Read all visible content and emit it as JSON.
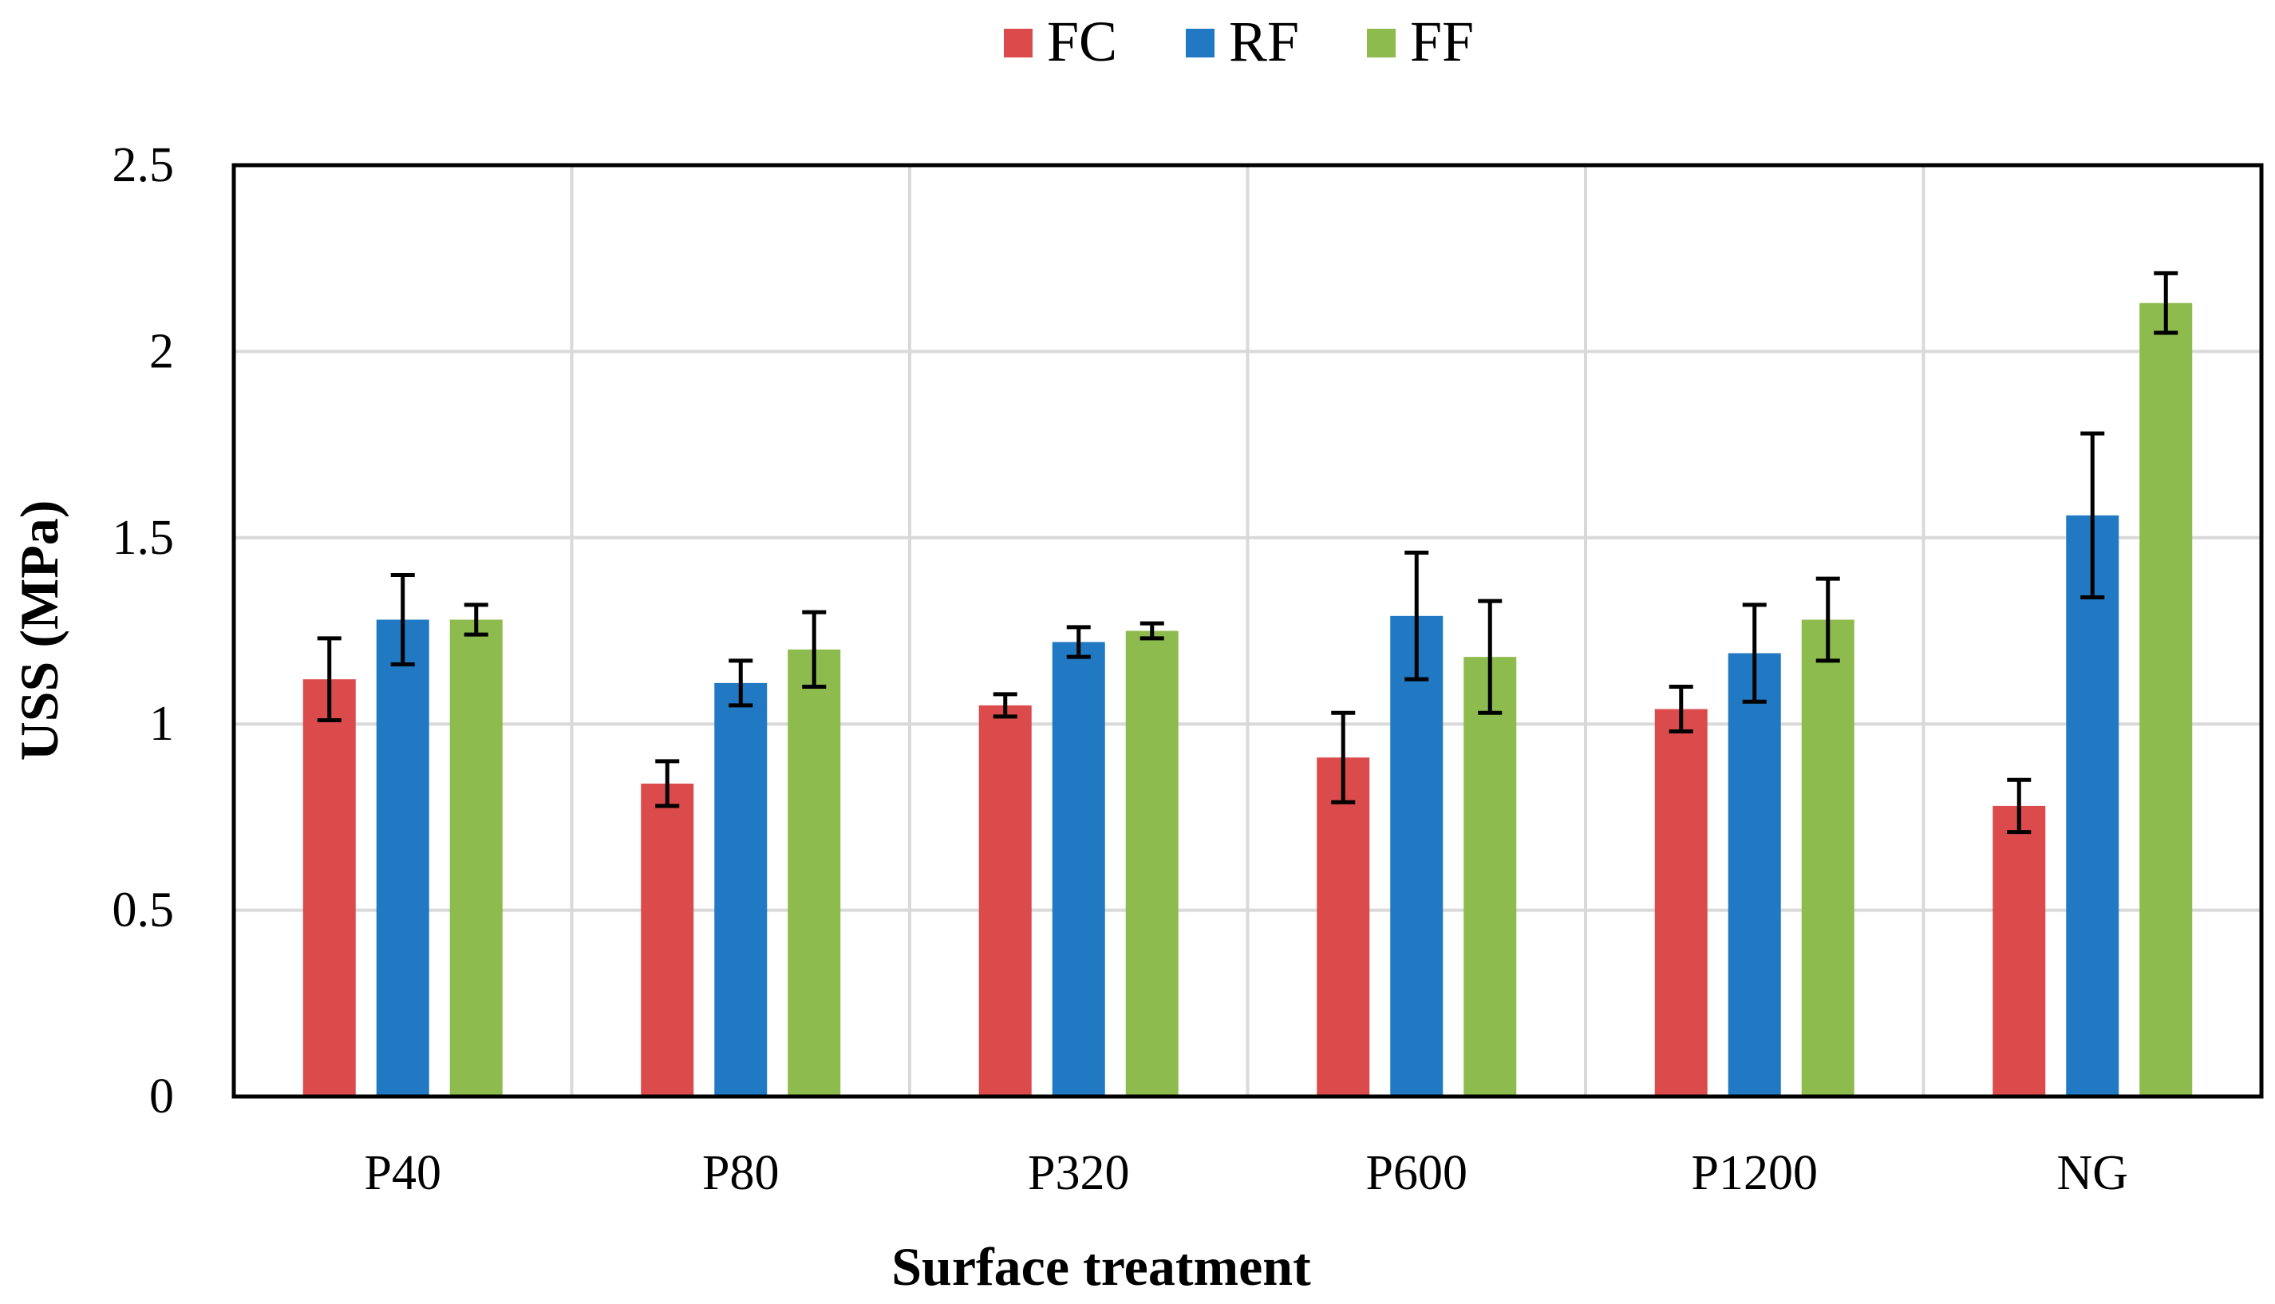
{
  "chart_data": {
    "type": "bar",
    "title": "",
    "xlabel": "Surface treatment",
    "ylabel": "USS (MPa)",
    "ylim": [
      0,
      2.5
    ],
    "yticks": [
      "0",
      "0.5",
      "1",
      "1.5",
      "2",
      "2.5"
    ],
    "categories": [
      "P40",
      "P80",
      "P320",
      "P600",
      "P1200",
      "NG"
    ],
    "grid": true,
    "legend_position": "top-center",
    "series": [
      {
        "name": "FC",
        "color": "#DB4B4B",
        "values": [
          1.12,
          0.84,
          1.05,
          0.91,
          1.04,
          0.78
        ],
        "errors": [
          0.11,
          0.06,
          0.03,
          0.12,
          0.06,
          0.07
        ]
      },
      {
        "name": "RF",
        "color": "#2079C2",
        "values": [
          1.28,
          1.11,
          1.22,
          1.29,
          1.19,
          1.56
        ],
        "errors": [
          0.12,
          0.06,
          0.04,
          0.17,
          0.13,
          0.22
        ]
      },
      {
        "name": "FF",
        "color": "#8DBB4E",
        "values": [
          1.28,
          1.2,
          1.25,
          1.18,
          1.28,
          2.13
        ],
        "errors": [
          0.04,
          0.1,
          0.02,
          0.15,
          0.11,
          0.08
        ]
      }
    ]
  }
}
